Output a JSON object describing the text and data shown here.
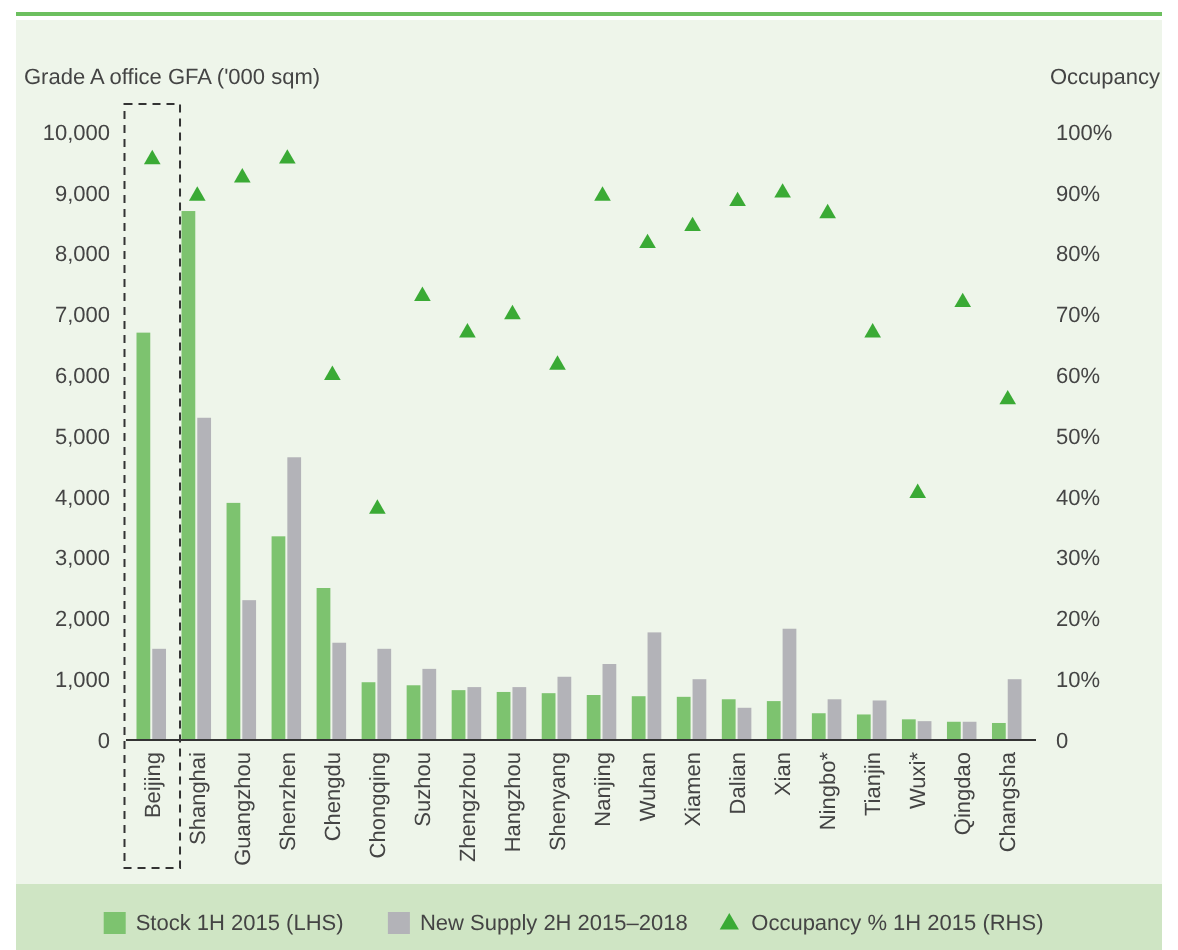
{
  "chart_data": {
    "type": "bar",
    "ylabel": "Grade A office GFA ('000 sqm)",
    "y2label": "Occupancy",
    "categories": [
      "Beijing",
      "Shanghai",
      "Guangzhou",
      "Shenzhen",
      "Chengdu",
      "Chongqing",
      "Suzhou",
      "Zhengzhou",
      "Hangzhou",
      "Shenyang",
      "Nanjing",
      "Wuhan",
      "Xiamen",
      "Dalian",
      "Xian",
      "Ningbo*",
      "Tianjin",
      "Wuxi*",
      "Qingdao",
      "Changsha"
    ],
    "series": [
      {
        "name": "Stock 1H 2015 (LHS)",
        "color": "#7dc36f",
        "values": [
          6700,
          8700,
          3900,
          3350,
          2500,
          950,
          900,
          820,
          790,
          770,
          740,
          720,
          710,
          670,
          640,
          440,
          420,
          340,
          300,
          280
        ]
      },
      {
        "name": "New Supply 2H 2015–2018",
        "color": "#b3b3b8",
        "values": [
          1500,
          5300,
          2300,
          4650,
          1600,
          1500,
          1170,
          870,
          870,
          1040,
          1250,
          1770,
          1000,
          530,
          1830,
          670,
          650,
          310,
          300,
          1000
        ]
      },
      {
        "name": "Occupancy % 1H 2015 (RHS)",
        "type": "scatter",
        "axis": "y2",
        "marker": "triangle",
        "color": "#3aaa35",
        "values": [
          95.5,
          89.5,
          92.5,
          95.6,
          60,
          38,
          73,
          67,
          70,
          61.7,
          89.5,
          81.7,
          84.5,
          88.6,
          90,
          86.6,
          67,
          40.6,
          72,
          56
        ]
      }
    ],
    "ylim": [
      0,
      10000
    ],
    "yticks": [
      {
        "value": 0,
        "label": "0"
      },
      {
        "value": 1000,
        "label": "1,000"
      },
      {
        "value": 2000,
        "label": "2,000"
      },
      {
        "value": 3000,
        "label": "3,000"
      },
      {
        "value": 4000,
        "label": "4,000"
      },
      {
        "value": 5000,
        "label": "5,000"
      },
      {
        "value": 6000,
        "label": "6,000"
      },
      {
        "value": 7000,
        "label": "7,000"
      },
      {
        "value": 8000,
        "label": "8,000"
      },
      {
        "value": 9000,
        "label": "9,000"
      },
      {
        "value": 10000,
        "label": "10,000"
      }
    ],
    "y2lim": [
      0,
      100
    ],
    "y2ticks": [
      0,
      {
        "value": 10,
        "label": "10%"
      },
      {
        "value": 20,
        "label": "20%"
      },
      {
        "value": 30,
        "label": "30%"
      },
      {
        "value": 40,
        "label": "40%"
      },
      {
        "value": 50,
        "label": "50%"
      },
      {
        "value": 60,
        "label": "60%"
      },
      {
        "value": 70,
        "label": "70%"
      },
      {
        "value": 80,
        "label": "80%"
      },
      {
        "value": 90,
        "label": "90%"
      },
      {
        "value": 100,
        "label": "100%"
      }
    ],
    "legend": "bottom"
  }
}
